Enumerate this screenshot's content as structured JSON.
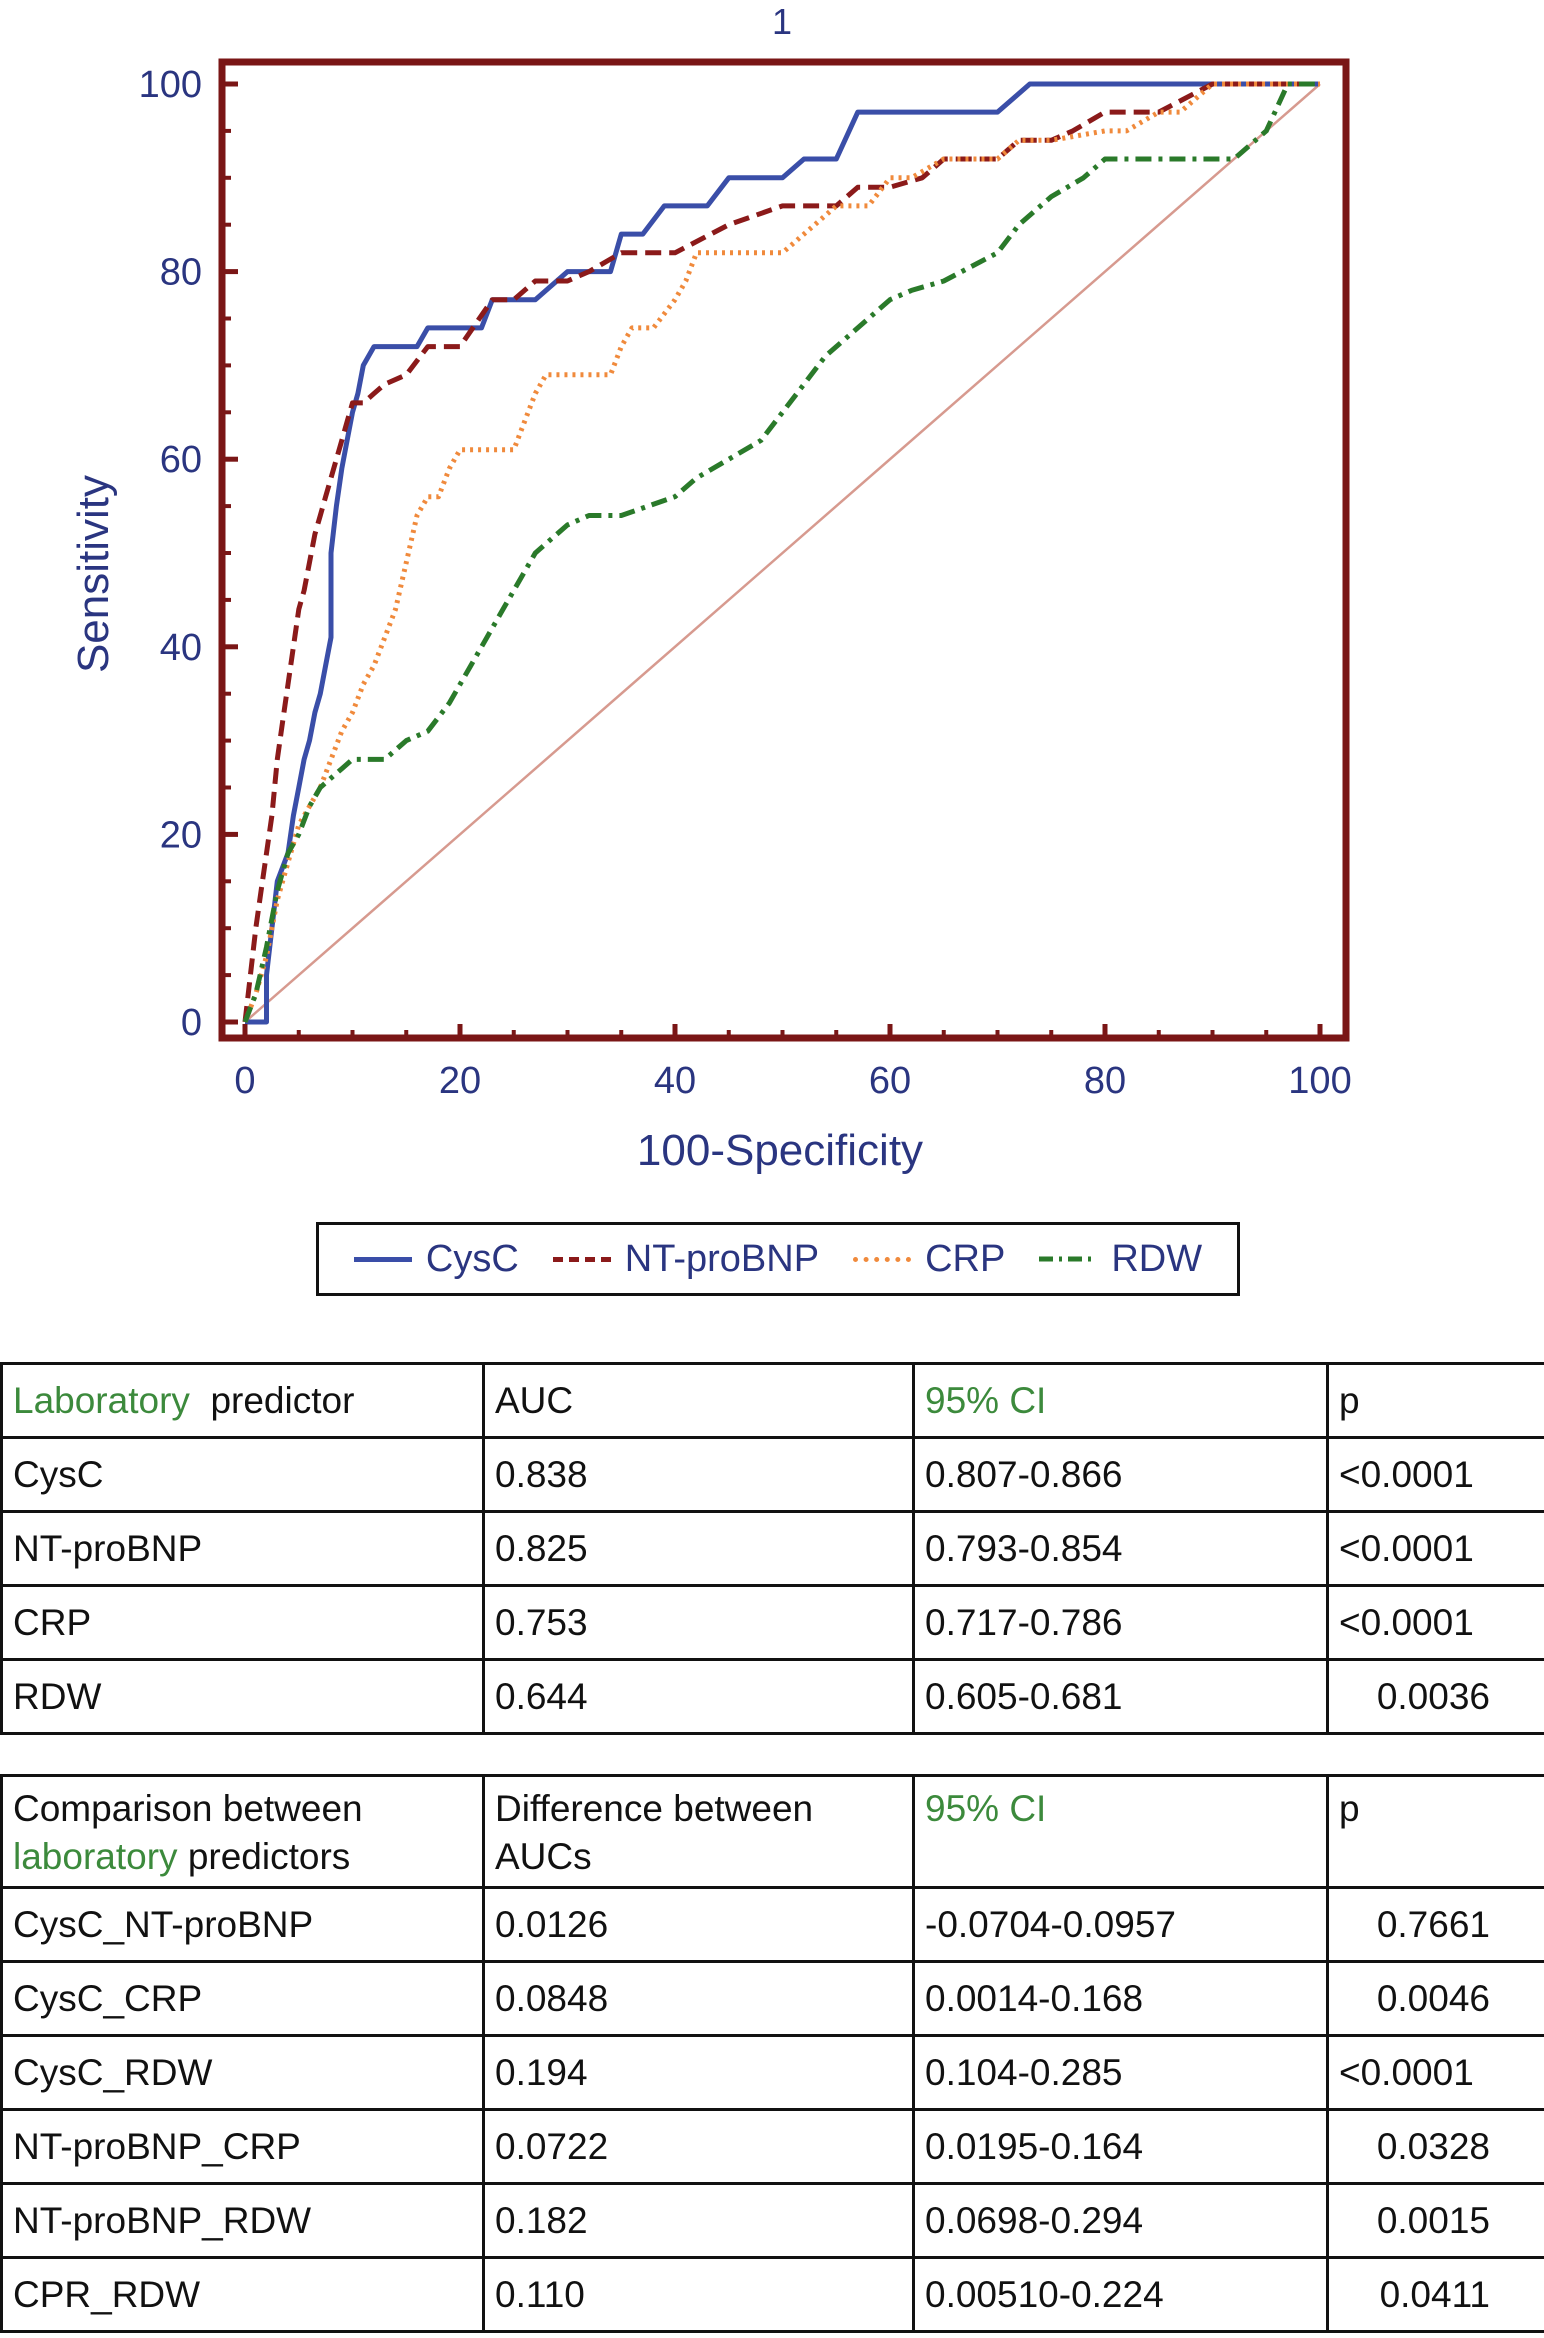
{
  "chart_data": {
    "type": "line",
    "title": "1",
    "xlabel": "100-Specificity",
    "ylabel": "Sensitivity",
    "xlim": [
      0,
      100
    ],
    "ylim": [
      0,
      100
    ],
    "xticks": [
      0,
      20,
      40,
      60,
      80,
      100
    ],
    "yticks": [
      0,
      20,
      40,
      60,
      80,
      100
    ],
    "grid": false,
    "legend_position": "bottom",
    "reference_line": {
      "x": [
        0,
        100
      ],
      "y": [
        0,
        100
      ],
      "color": "#d79a8f"
    },
    "series": [
      {
        "name": "CysC",
        "color": "#3a4ea8",
        "dash": "solid",
        "x": [
          0,
          2,
          2,
          2.5,
          3,
          4,
          4.5,
          5,
          5.5,
          6,
          6.5,
          7,
          7.5,
          8,
          8,
          8.5,
          9,
          9.5,
          10,
          10.5,
          11,
          12,
          13,
          14,
          16,
          17,
          20,
          22,
          23,
          25,
          27,
          30,
          32,
          34,
          35,
          37,
          39,
          41,
          43,
          45,
          50,
          52,
          55,
          57,
          60,
          62,
          70,
          73,
          100
        ],
        "y": [
          0,
          0,
          5,
          10,
          15,
          18,
          22,
          25,
          28,
          30,
          33,
          35,
          38,
          41,
          50,
          55,
          59,
          62,
          65,
          67,
          70,
          72,
          72,
          72,
          72,
          74,
          74,
          74,
          77,
          77,
          77,
          80,
          80,
          80,
          84,
          84,
          87,
          87,
          87,
          90,
          90,
          92,
          92,
          97,
          97,
          97,
          97,
          100,
          100
        ]
      },
      {
        "name": "NT-proBNP",
        "color": "#8b1a1a",
        "dash": "long",
        "x": [
          0,
          0.5,
          1,
          1.5,
          2,
          2.5,
          3,
          3.5,
          4,
          4.5,
          5,
          5.5,
          6,
          6.5,
          7,
          7.5,
          8,
          8.5,
          9,
          9.5,
          10,
          11,
          12,
          13,
          15,
          17,
          20,
          23,
          25,
          27,
          30,
          32,
          35,
          40,
          45,
          50,
          55,
          57,
          60,
          63,
          65,
          70,
          72,
          75,
          77,
          80,
          85,
          90,
          92,
          95,
          100
        ],
        "y": [
          0,
          5,
          10,
          14,
          18,
          22,
          28,
          32,
          36,
          40,
          44,
          46,
          49,
          52,
          54,
          56,
          58,
          60,
          62,
          64,
          66,
          66,
          67,
          68,
          69,
          72,
          72,
          77,
          77,
          79,
          79,
          80,
          82,
          82,
          85,
          87,
          87,
          89,
          89,
          90,
          92,
          92,
          94,
          94,
          95,
          97,
          97,
          100,
          100,
          100,
          100
        ]
      },
      {
        "name": "CRP",
        "color": "#f08a3c",
        "dash": "dotted",
        "x": [
          0,
          1,
          2,
          2.5,
          3,
          3.5,
          4,
          4.5,
          5,
          6,
          7,
          8,
          9,
          10,
          11,
          12,
          13,
          14,
          15,
          16,
          17,
          18,
          19,
          20,
          22,
          25,
          26,
          27,
          28,
          30,
          32,
          34,
          35,
          36,
          37,
          38,
          40,
          41,
          42,
          43,
          45,
          50,
          53,
          55,
          58,
          60,
          62,
          65,
          70,
          72,
          75,
          80,
          82,
          85,
          87,
          90,
          100
        ],
        "y": [
          0,
          3,
          7,
          10,
          13,
          15,
          17,
          19,
          21,
          23,
          25,
          28,
          31,
          33,
          36,
          38,
          41,
          44,
          49,
          54,
          56,
          56,
          59,
          61,
          61,
          61,
          64,
          67,
          69,
          69,
          69,
          69,
          72,
          74,
          74,
          74,
          77,
          79,
          82,
          82,
          82,
          82,
          85,
          87,
          87,
          90,
          90,
          92,
          92,
          94,
          94,
          95,
          95,
          97,
          97,
          100,
          100
        ]
      },
      {
        "name": "RDW",
        "color": "#2a7a2a",
        "dash": "dashdot",
        "x": [
          0,
          1,
          2,
          3,
          4,
          5,
          6,
          7,
          8,
          9,
          10,
          11,
          12,
          13,
          14,
          15,
          17,
          19,
          21,
          24,
          27,
          30,
          32,
          35,
          40,
          42,
          45,
          48,
          50,
          52,
          54,
          56,
          58,
          60,
          62,
          65,
          70,
          72,
          75,
          78,
          80,
          85,
          90,
          92,
          95,
          97,
          100
        ],
        "y": [
          0,
          3,
          8,
          14,
          18,
          20,
          23,
          25,
          26,
          27,
          28,
          28,
          28,
          28,
          29,
          30,
          31,
          34,
          38,
          44,
          50,
          53,
          54,
          54,
          56,
          58,
          60,
          62,
          65,
          68,
          71,
          73,
          75,
          77,
          78,
          79,
          82,
          85,
          88,
          90,
          92,
          92,
          92,
          92,
          95,
          100,
          100
        ]
      }
    ]
  },
  "table1": {
    "header": {
      "c1a": "Laboratory",
      "c1b": "predictor",
      "c2": "AUC",
      "c3": "95% CI",
      "c4": "p"
    },
    "rows": [
      {
        "predictor": "CysC",
        "auc": "0.838",
        "ci": "0.807-0.866",
        "p": "<0.0001"
      },
      {
        "predictor": "NT-proBNP",
        "auc": "0.825",
        "ci": "0.793-0.854",
        "p": "<0.0001"
      },
      {
        "predictor": "CRP",
        "auc": "0.753",
        "ci": "0.717-0.786",
        "p": "<0.0001"
      },
      {
        "predictor": "RDW",
        "auc": "0.644",
        "ci": "0.605-0.681",
        "p": "0.0036"
      }
    ]
  },
  "table2": {
    "header": {
      "c1a": "Comparison between",
      "c1b": "laboratory",
      "c1c": "predictors",
      "c2a": "Difference between",
      "c2b": "AUCs",
      "c3": "95% CI",
      "c4": "p"
    },
    "rows": [
      {
        "pair": "CysC_NT-proBNP",
        "diff": "0.0126",
        "ci": "-0.0704-0.0957",
        "p": "0.7661"
      },
      {
        "pair": "CysC_CRP",
        "diff": "0.0848",
        "ci": "0.0014-0.168",
        "p": "0.0046"
      },
      {
        "pair": "CysC_RDW",
        "diff": "0.194",
        "ci": "0.104-0.285",
        "p": "<0.0001"
      },
      {
        "pair": "NT-proBNP_CRP",
        "diff": "0.0722",
        "ci": "0.0195-0.164",
        "p": "0.0328"
      },
      {
        "pair": "NT-proBNP_RDW",
        "diff": "0.182",
        "ci": "0.0698-0.294",
        "p": "0.0015"
      },
      {
        "pair": "CPR_RDW",
        "diff": "0.110",
        "ci": "0.00510-0.224",
        "p": "0.0411"
      }
    ]
  }
}
